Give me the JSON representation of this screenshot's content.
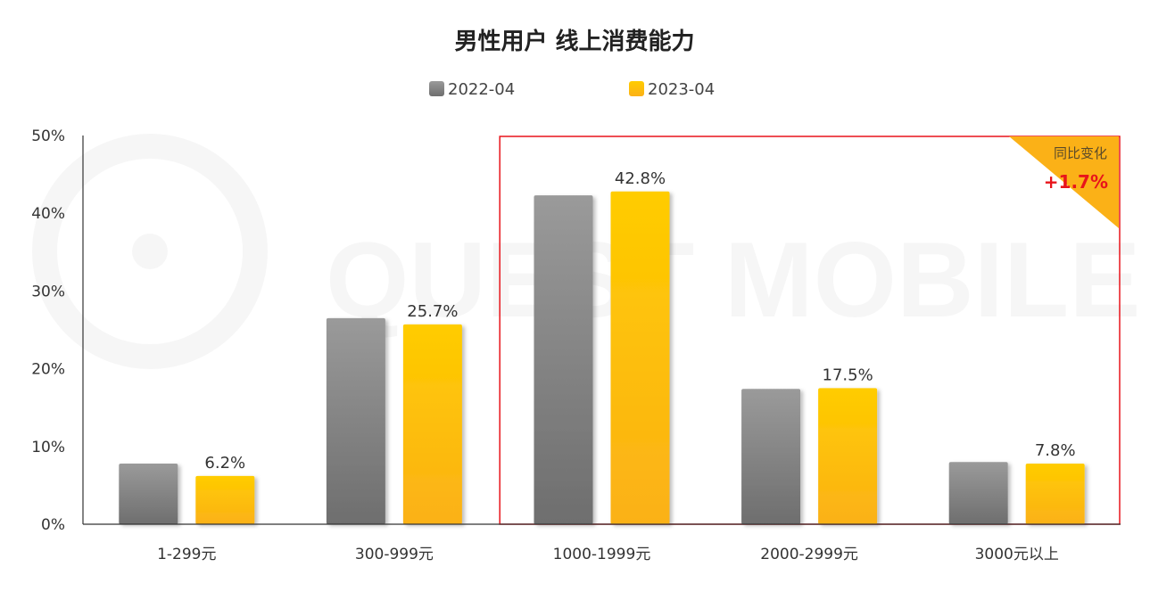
{
  "watermark": "QUEST MOBILE",
  "chart_data": {
    "type": "bar",
    "title": "男性用户 线上消费能力",
    "categories": [
      "1-299元",
      "300-999元",
      "1000-1999元",
      "2000-2999元",
      "3000元以上"
    ],
    "series": [
      {
        "name": "2022-04",
        "values": [
          7.8,
          26.5,
          42.3,
          17.4,
          8.0
        ],
        "color": "#8a8a8a"
      },
      {
        "name": "2023-04",
        "values": [
          6.2,
          25.7,
          42.8,
          17.5,
          7.8
        ],
        "color": "#ffc000"
      }
    ],
    "data_labels": [
      "6.2%",
      "25.7%",
      "42.8%",
      "17.5%",
      "7.8%"
    ],
    "y_ticks": [
      "0%",
      "10%",
      "20%",
      "30%",
      "40%",
      "50%"
    ],
    "ylim": [
      0,
      50
    ],
    "legend_position": "top-center",
    "highlight_categories": [
      "1000-1999元",
      "2000-2999元",
      "3000元以上"
    ],
    "highlight_color": "#e8141b",
    "badge": {
      "title": "同比变化",
      "value": "+1.7%"
    },
    "grid": false
  }
}
